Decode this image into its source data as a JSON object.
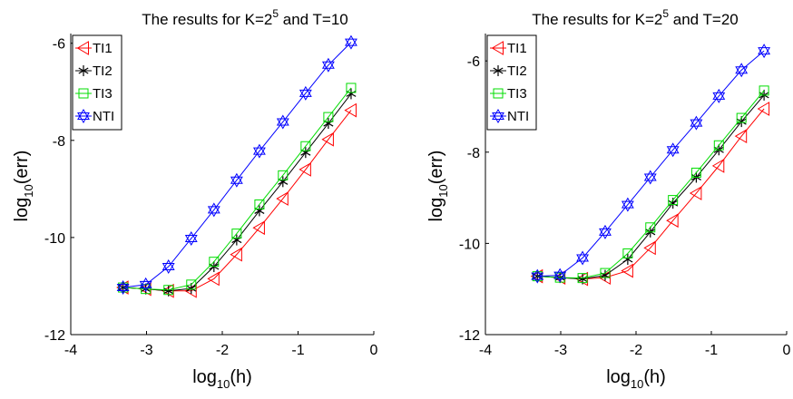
{
  "chart_data": [
    {
      "type": "line",
      "title": {
        "prefix": "The results for K=2",
        "superscript": "5",
        "suffix": " and T=10"
      },
      "xlabel": {
        "base": "log",
        "subscript": "10",
        "rest": "(h)"
      },
      "ylabel": {
        "base": "log",
        "subscript": "10",
        "rest": "(err)"
      },
      "xlim": [
        -4,
        0
      ],
      "ylim": [
        -12,
        -5.8
      ],
      "xticks": [
        -4,
        -3,
        -2,
        -1,
        0
      ],
      "yticks": [
        -12,
        -10,
        -8,
        -6
      ],
      "grid": false,
      "legend_position": "top-left",
      "x": [
        -3.31,
        -3.01,
        -2.71,
        -2.41,
        -2.11,
        -1.81,
        -1.51,
        -1.2,
        -0.9,
        -0.6,
        -0.3
      ],
      "series": [
        {
          "name": "TI1",
          "color": "#ff0000",
          "marker": "triangle-left",
          "values": [
            -11.03,
            -11.06,
            -11.1,
            -11.1,
            -10.85,
            -10.35,
            -9.8,
            -9.2,
            -8.6,
            -7.98,
            -7.38
          ]
        },
        {
          "name": "TI2",
          "color": "#000000",
          "marker": "asterisk",
          "values": [
            -11.03,
            -11.06,
            -11.1,
            -11.05,
            -10.6,
            -10.05,
            -9.45,
            -8.85,
            -8.25,
            -7.65,
            -7.04
          ]
        },
        {
          "name": "TI3",
          "color": "#00dd00",
          "marker": "square",
          "values": [
            -11.03,
            -11.06,
            -11.08,
            -10.97,
            -10.5,
            -9.92,
            -9.32,
            -8.72,
            -8.12,
            -7.52,
            -6.92
          ]
        },
        {
          "name": "NTI",
          "color": "#0000ff",
          "marker": "hexagram",
          "values": [
            -11.03,
            -10.97,
            -10.6,
            -10.02,
            -9.43,
            -8.82,
            -8.22,
            -7.62,
            -7.03,
            -6.45,
            -5.98
          ]
        }
      ]
    },
    {
      "type": "line",
      "title": {
        "prefix": "The results for K=2",
        "superscript": "5",
        "suffix": " and T=20"
      },
      "xlabel": {
        "base": "log",
        "subscript": "10",
        "rest": "(h)"
      },
      "ylabel": {
        "base": "log",
        "subscript": "10",
        "rest": "(err)"
      },
      "xlim": [
        -4,
        0
      ],
      "ylim": [
        -12,
        -5.4
      ],
      "xticks": [
        -4,
        -3,
        -2,
        -1,
        0
      ],
      "yticks": [
        -12,
        -10,
        -8,
        -6
      ],
      "grid": false,
      "legend_position": "top-left",
      "x": [
        -3.31,
        -3.01,
        -2.71,
        -2.41,
        -2.11,
        -1.81,
        -1.51,
        -1.2,
        -0.9,
        -0.6,
        -0.3
      ],
      "series": [
        {
          "name": "TI1",
          "color": "#ff0000",
          "marker": "triangle-left",
          "values": [
            -10.72,
            -10.75,
            -10.78,
            -10.75,
            -10.6,
            -10.1,
            -9.5,
            -8.9,
            -8.3,
            -7.65,
            -7.05
          ]
        },
        {
          "name": "TI2",
          "color": "#000000",
          "marker": "asterisk",
          "values": [
            -10.72,
            -10.75,
            -10.78,
            -10.7,
            -10.35,
            -9.75,
            -9.12,
            -8.55,
            -7.95,
            -7.33,
            -6.75
          ]
        },
        {
          "name": "TI3",
          "color": "#00dd00",
          "marker": "square",
          "values": [
            -10.72,
            -10.75,
            -10.76,
            -10.65,
            -10.22,
            -9.65,
            -9.05,
            -8.45,
            -7.85,
            -7.25,
            -6.65
          ]
        },
        {
          "name": "NTI",
          "color": "#0000ff",
          "marker": "hexagram",
          "values": [
            -10.72,
            -10.7,
            -10.32,
            -9.75,
            -9.15,
            -8.55,
            -7.95,
            -7.36,
            -6.77,
            -6.2,
            -5.78
          ]
        }
      ]
    }
  ]
}
